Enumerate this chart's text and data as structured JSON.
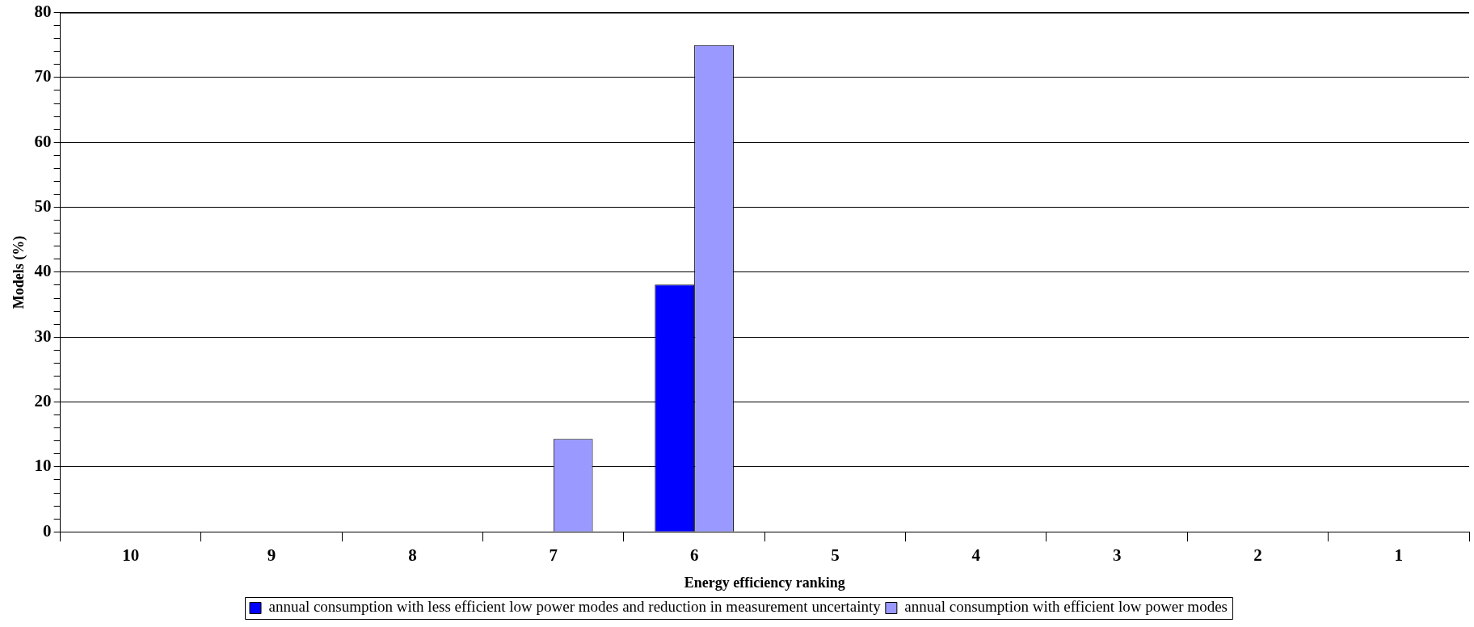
{
  "chart_data": {
    "type": "bar",
    "xlabel": "Energy efficiency ranking",
    "ylabel": "Models (%)",
    "categories": [
      "10",
      "9",
      "8",
      "7",
      "6",
      "5",
      "4",
      "3",
      "2",
      "1"
    ],
    "series": [
      {
        "name": "annual consumption with less efficient low power modes and reduction in measurement uncertainty",
        "color": "#0000ff",
        "values": [
          0,
          0,
          0,
          0,
          38.1,
          0,
          0,
          0,
          0,
          0
        ]
      },
      {
        "name": "annual consumption with efficient low power modes",
        "color": "#9999ff",
        "values": [
          0,
          0,
          0,
          14.3,
          75,
          0,
          0,
          0,
          0,
          0
        ]
      }
    ],
    "ylim": [
      0,
      80
    ],
    "yticks": [
      0,
      {
        "value": 2,
        "label": null
      },
      {
        "value": 4,
        "label": null
      },
      {
        "value": 6,
        "label": null
      },
      {
        "value": 8,
        "label": null
      },
      10,
      {
        "value": 12,
        "label": null
      },
      {
        "value": 14,
        "label": null
      },
      {
        "value": 16,
        "label": null
      },
      {
        "value": 18,
        "label": null
      },
      20,
      {
        "value": 22,
        "label": null
      },
      {
        "value": 24,
        "label": null
      },
      {
        "value": 26,
        "label": null
      },
      {
        "value": 28,
        "label": null
      },
      30,
      {
        "value": 32,
        "label": null
      },
      {
        "value": 34,
        "label": null
      },
      {
        "value": 36,
        "label": null
      },
      {
        "value": 38,
        "label": null
      },
      40,
      {
        "value": 42,
        "label": null
      },
      {
        "value": 44,
        "label": null
      },
      {
        "value": 46,
        "label": null
      },
      {
        "value": 48,
        "label": null
      },
      50,
      {
        "value": 52,
        "label": null
      },
      {
        "value": 54,
        "label": null
      },
      {
        "value": 56,
        "label": null
      },
      {
        "value": 58,
        "label": null
      },
      60,
      {
        "value": 62,
        "label": null
      },
      {
        "value": 64,
        "label": null
      },
      {
        "value": 66,
        "label": null
      },
      {
        "value": 68,
        "label": null
      },
      70,
      {
        "value": 72,
        "label": null
      },
      {
        "value": 74,
        "label": null
      },
      {
        "value": 76,
        "label": null
      },
      {
        "value": 78,
        "label": null
      },
      80
    ],
    "grid": "y",
    "legend": "bottom"
  }
}
